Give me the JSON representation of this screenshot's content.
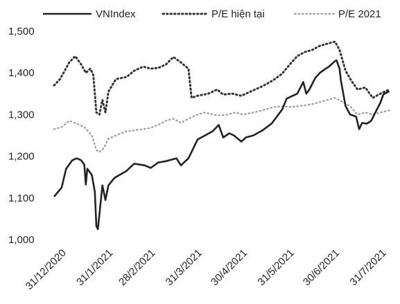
{
  "chart_data": {
    "type": "line",
    "title": "",
    "xlabel": "",
    "ylabel": "",
    "ylim": [
      1000,
      1500
    ],
    "yticks": [
      "1,000",
      "1,100",
      "1,200",
      "1,300",
      "1,400",
      "1,500"
    ],
    "x_tick_labels": [
      "31/12/2020",
      "31/1/2021",
      "28/2/2021",
      "31/3/2021",
      "30/4/2021",
      "31/5/2021",
      "30/6/2021",
      "31/7/2021"
    ],
    "legend_position": "top",
    "series": [
      {
        "name": "VNIndex",
        "style": "solid",
        "color": "#222222",
        "points": [
          [
            "2020-12-31",
            1103
          ],
          [
            "2021-01-05",
            1125
          ],
          [
            "2021-01-08",
            1170
          ],
          [
            "2021-01-12",
            1190
          ],
          [
            "2021-01-15",
            1195
          ],
          [
            "2021-01-18",
            1190
          ],
          [
            "2021-01-20",
            1180
          ],
          [
            "2021-01-21",
            1132
          ],
          [
            "2021-01-22",
            1170
          ],
          [
            "2021-01-25",
            1155
          ],
          [
            "2021-01-27",
            1115
          ],
          [
            "2021-01-28",
            1032
          ],
          [
            "2021-01-29",
            1025
          ],
          [
            "2021-02-01",
            1130
          ],
          [
            "2021-02-03",
            1095
          ],
          [
            "2021-02-05",
            1130
          ],
          [
            "2021-02-09",
            1148
          ],
          [
            "2021-02-17",
            1165
          ],
          [
            "2021-02-22",
            1182
          ],
          [
            "2021-03-01",
            1178
          ],
          [
            "2021-03-05",
            1172
          ],
          [
            "2021-03-10",
            1185
          ],
          [
            "2021-03-15",
            1188
          ],
          [
            "2021-03-22",
            1195
          ],
          [
            "2021-03-25",
            1178
          ],
          [
            "2021-03-30",
            1195
          ],
          [
            "2021-04-05",
            1240
          ],
          [
            "2021-04-10",
            1250
          ],
          [
            "2021-04-15",
            1260
          ],
          [
            "2021-04-19",
            1275
          ],
          [
            "2021-04-22",
            1245
          ],
          [
            "2021-04-26",
            1255
          ],
          [
            "2021-04-29",
            1250
          ],
          [
            "2021-05-04",
            1235
          ],
          [
            "2021-05-07",
            1245
          ],
          [
            "2021-05-12",
            1250
          ],
          [
            "2021-05-18",
            1262
          ],
          [
            "2021-05-24",
            1278
          ],
          [
            "2021-05-31",
            1312
          ],
          [
            "2021-06-03",
            1338
          ],
          [
            "2021-06-07",
            1345
          ],
          [
            "2021-06-10",
            1350
          ],
          [
            "2021-06-14",
            1378
          ],
          [
            "2021-06-16",
            1350
          ],
          [
            "2021-06-18",
            1360
          ],
          [
            "2021-06-22",
            1388
          ],
          [
            "2021-06-25",
            1400
          ],
          [
            "2021-06-28",
            1408
          ],
          [
            "2021-07-01",
            1415
          ],
          [
            "2021-07-05",
            1428
          ],
          [
            "2021-07-06",
            1430
          ],
          [
            "2021-07-08",
            1410
          ],
          [
            "2021-07-09",
            1380
          ],
          [
            "2021-07-12",
            1320
          ],
          [
            "2021-07-15",
            1300
          ],
          [
            "2021-07-19",
            1295
          ],
          [
            "2021-07-21",
            1265
          ],
          [
            "2021-07-23",
            1280
          ],
          [
            "2021-07-26",
            1278
          ],
          [
            "2021-07-29",
            1285
          ],
          [
            "2021-07-31",
            1300
          ],
          [
            "2021-08-04",
            1328
          ],
          [
            "2021-08-06",
            1348
          ],
          [
            "2021-08-10",
            1356
          ]
        ]
      },
      {
        "name": "P/E hiện tại",
        "style": "dotted",
        "color": "#333333",
        "points": [
          [
            "2020-12-31",
            1370
          ],
          [
            "2021-01-04",
            1385
          ],
          [
            "2021-01-07",
            1405
          ],
          [
            "2021-01-10",
            1425
          ],
          [
            "2021-01-14",
            1440
          ],
          [
            "2021-01-18",
            1420
          ],
          [
            "2021-01-21",
            1400
          ],
          [
            "2021-01-24",
            1410
          ],
          [
            "2021-01-26",
            1395
          ],
          [
            "2021-01-28",
            1305
          ],
          [
            "2021-01-30",
            1300
          ],
          [
            "2021-02-01",
            1335
          ],
          [
            "2021-02-03",
            1305
          ],
          [
            "2021-02-05",
            1355
          ],
          [
            "2021-02-10",
            1385
          ],
          [
            "2021-02-17",
            1390
          ],
          [
            "2021-02-22",
            1405
          ],
          [
            "2021-02-28",
            1415
          ],
          [
            "2021-03-05",
            1410
          ],
          [
            "2021-03-10",
            1412
          ],
          [
            "2021-03-15",
            1420
          ],
          [
            "2021-03-20",
            1438
          ],
          [
            "2021-03-25",
            1425
          ],
          [
            "2021-03-30",
            1410
          ],
          [
            "2021-04-01",
            1340
          ],
          [
            "2021-04-05",
            1345
          ],
          [
            "2021-04-12",
            1350
          ],
          [
            "2021-04-18",
            1360
          ],
          [
            "2021-04-22",
            1348
          ],
          [
            "2021-04-28",
            1350
          ],
          [
            "2021-05-04",
            1345
          ],
          [
            "2021-05-10",
            1355
          ],
          [
            "2021-05-18",
            1368
          ],
          [
            "2021-05-25",
            1382
          ],
          [
            "2021-05-31",
            1398
          ],
          [
            "2021-06-05",
            1420
          ],
          [
            "2021-06-10",
            1440
          ],
          [
            "2021-06-15",
            1450
          ],
          [
            "2021-06-20",
            1455
          ],
          [
            "2021-06-25",
            1465
          ],
          [
            "2021-06-30",
            1470
          ],
          [
            "2021-07-05",
            1475
          ],
          [
            "2021-07-08",
            1455
          ],
          [
            "2021-07-12",
            1405
          ],
          [
            "2021-07-16",
            1380
          ],
          [
            "2021-07-20",
            1360
          ],
          [
            "2021-07-25",
            1365
          ],
          [
            "2021-07-30",
            1340
          ],
          [
            "2021-08-04",
            1350
          ],
          [
            "2021-08-10",
            1360
          ]
        ]
      },
      {
        "name": "P/E 2021",
        "style": "dotted",
        "color": "#9a9a9a",
        "points": [
          [
            "2020-12-31",
            1265
          ],
          [
            "2021-01-05",
            1270
          ],
          [
            "2021-01-10",
            1285
          ],
          [
            "2021-01-15",
            1278
          ],
          [
            "2021-01-20",
            1270
          ],
          [
            "2021-01-25",
            1250
          ],
          [
            "2021-01-28",
            1215
          ],
          [
            "2021-01-30",
            1210
          ],
          [
            "2021-02-02",
            1220
          ],
          [
            "2021-02-05",
            1242
          ],
          [
            "2021-02-10",
            1250
          ],
          [
            "2021-02-17",
            1260
          ],
          [
            "2021-02-22",
            1262
          ],
          [
            "2021-02-28",
            1265
          ],
          [
            "2021-03-05",
            1268
          ],
          [
            "2021-03-10",
            1275
          ],
          [
            "2021-03-15",
            1285
          ],
          [
            "2021-03-20",
            1290
          ],
          [
            "2021-03-25",
            1280
          ],
          [
            "2021-03-30",
            1290
          ],
          [
            "2021-04-05",
            1300
          ],
          [
            "2021-04-10",
            1305
          ],
          [
            "2021-04-15",
            1300
          ],
          [
            "2021-04-20",
            1298
          ],
          [
            "2021-04-25",
            1300
          ],
          [
            "2021-04-30",
            1305
          ],
          [
            "2021-05-05",
            1300
          ],
          [
            "2021-05-12",
            1305
          ],
          [
            "2021-05-18",
            1310
          ],
          [
            "2021-05-25",
            1318
          ],
          [
            "2021-05-31",
            1320
          ],
          [
            "2021-06-05",
            1318
          ],
          [
            "2021-06-10",
            1320
          ],
          [
            "2021-06-15",
            1322
          ],
          [
            "2021-06-20",
            1325
          ],
          [
            "2021-06-25",
            1330
          ],
          [
            "2021-06-30",
            1335
          ],
          [
            "2021-07-05",
            1340
          ],
          [
            "2021-07-10",
            1330
          ],
          [
            "2021-07-15",
            1320
          ],
          [
            "2021-07-20",
            1300
          ],
          [
            "2021-07-25",
            1305
          ],
          [
            "2021-07-30",
            1300
          ],
          [
            "2021-08-04",
            1305
          ],
          [
            "2021-08-10",
            1310
          ]
        ]
      }
    ]
  }
}
